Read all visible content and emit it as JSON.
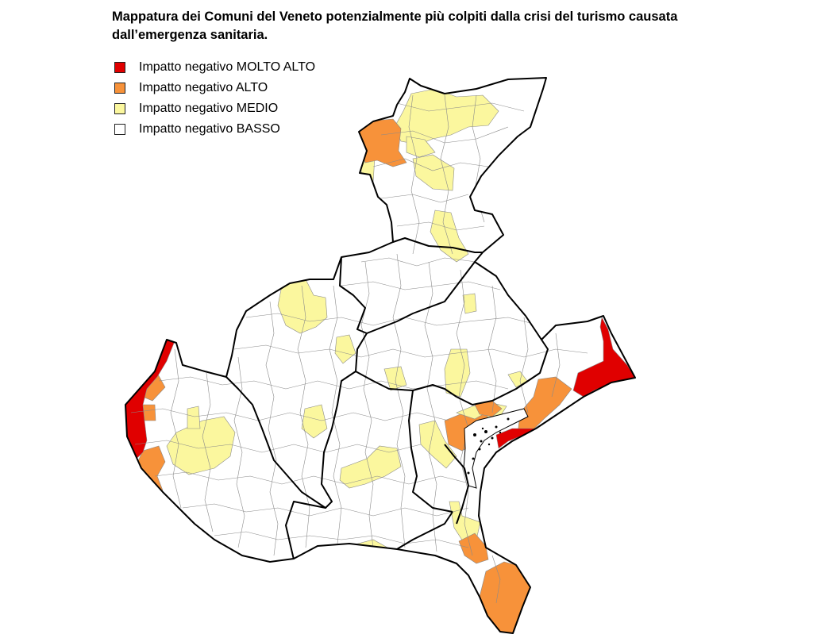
{
  "title_line1": "Mappatura dei Comuni del Veneto potenzialmente più colpiti dalla crisi del turismo causata",
  "title_line2": "dall’emergenza sanitaria.",
  "legend": [
    {
      "label": "Impatto negativo MOLTO ALTO",
      "color": "#e00000"
    },
    {
      "label": "Impatto negativo ALTO",
      "color": "#f7923a"
    },
    {
      "label": "Impatto negativo MEDIO",
      "color": "#fbf79e"
    },
    {
      "label": "Impatto negativo BASSO",
      "color": "#ffffff"
    }
  ]
}
